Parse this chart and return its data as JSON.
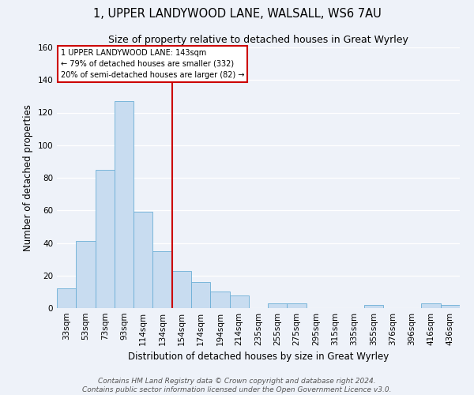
{
  "title": "1, UPPER LANDYWOOD LANE, WALSALL, WS6 7AU",
  "subtitle": "Size of property relative to detached houses in Great Wyrley",
  "xlabel": "Distribution of detached houses by size in Great Wyrley",
  "ylabel": "Number of detached properties",
  "footer_line1": "Contains HM Land Registry data © Crown copyright and database right 2024.",
  "footer_line2": "Contains public sector information licensed under the Open Government Licence v3.0.",
  "bins": [
    "33sqm",
    "53sqm",
    "73sqm",
    "93sqm",
    "114sqm",
    "134sqm",
    "154sqm",
    "174sqm",
    "194sqm",
    "214sqm",
    "235sqm",
    "255sqm",
    "275sqm",
    "295sqm",
    "315sqm",
    "335sqm",
    "355sqm",
    "376sqm",
    "396sqm",
    "416sqm",
    "436sqm"
  ],
  "counts": [
    12,
    41,
    85,
    127,
    59,
    35,
    23,
    16,
    10,
    8,
    0,
    3,
    3,
    0,
    0,
    0,
    2,
    0,
    0,
    3,
    2
  ],
  "bar_color": "#c8dcf0",
  "bar_edge_color": "#6aaed6",
  "vline_color": "#cc0000",
  "annotation_text": "1 UPPER LANDYWOOD LANE: 143sqm\n← 79% of detached houses are smaller (332)\n20% of semi-detached houses are larger (82) →",
  "annotation_box_color": "#ffffff",
  "annotation_box_edge": "#cc0000",
  "ylim": [
    0,
    160
  ],
  "yticks": [
    0,
    20,
    40,
    60,
    80,
    100,
    120,
    140,
    160
  ],
  "bg_color": "#eef2f9",
  "grid_color": "#ffffff",
  "title_fontsize": 10.5,
  "subtitle_fontsize": 9,
  "axis_label_fontsize": 8.5,
  "tick_fontsize": 7.5,
  "footer_fontsize": 6.5
}
